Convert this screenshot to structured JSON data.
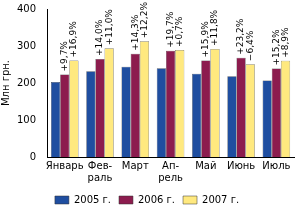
{
  "chart_data": {
    "type": "bar",
    "y_label": "Млн грн.",
    "categories": [
      "Январь",
      [
        "Фев-",
        "раль"
      ],
      "Март",
      [
        "Ап-",
        "рель"
      ],
      "Май",
      "Июнь",
      "Июль"
    ],
    "series": [
      {
        "name": "2005 г.",
        "color": "#1f4ea0",
        "values": [
          203,
          232,
          244,
          240,
          225,
          218,
          207
        ]
      },
      {
        "name": "2006 г.",
        "color": "#8c1c4e",
        "values": [
          223,
          265,
          279,
          287,
          261,
          268,
          239
        ],
        "change_labels": [
          "+9,7%",
          "+14,0%",
          "+14,3%",
          "+19,7%",
          "+15,9%",
          "+23,2%",
          "+15,2%"
        ]
      },
      {
        "name": "2007 г.",
        "color": "#ffe97f",
        "values": [
          261,
          294,
          313,
          289,
          292,
          251,
          260
        ],
        "change_labels": [
          "+16,9%",
          "+11,0%",
          "+12,2%",
          "+0,7%",
          "+11,8%",
          "−6,4%",
          "+8,9%"
        ]
      }
    ],
    "ylim": [
      0,
      400
    ],
    "yticks": [
      0,
      100,
      200,
      300,
      400
    ],
    "grid": false,
    "legend": "bottom"
  }
}
